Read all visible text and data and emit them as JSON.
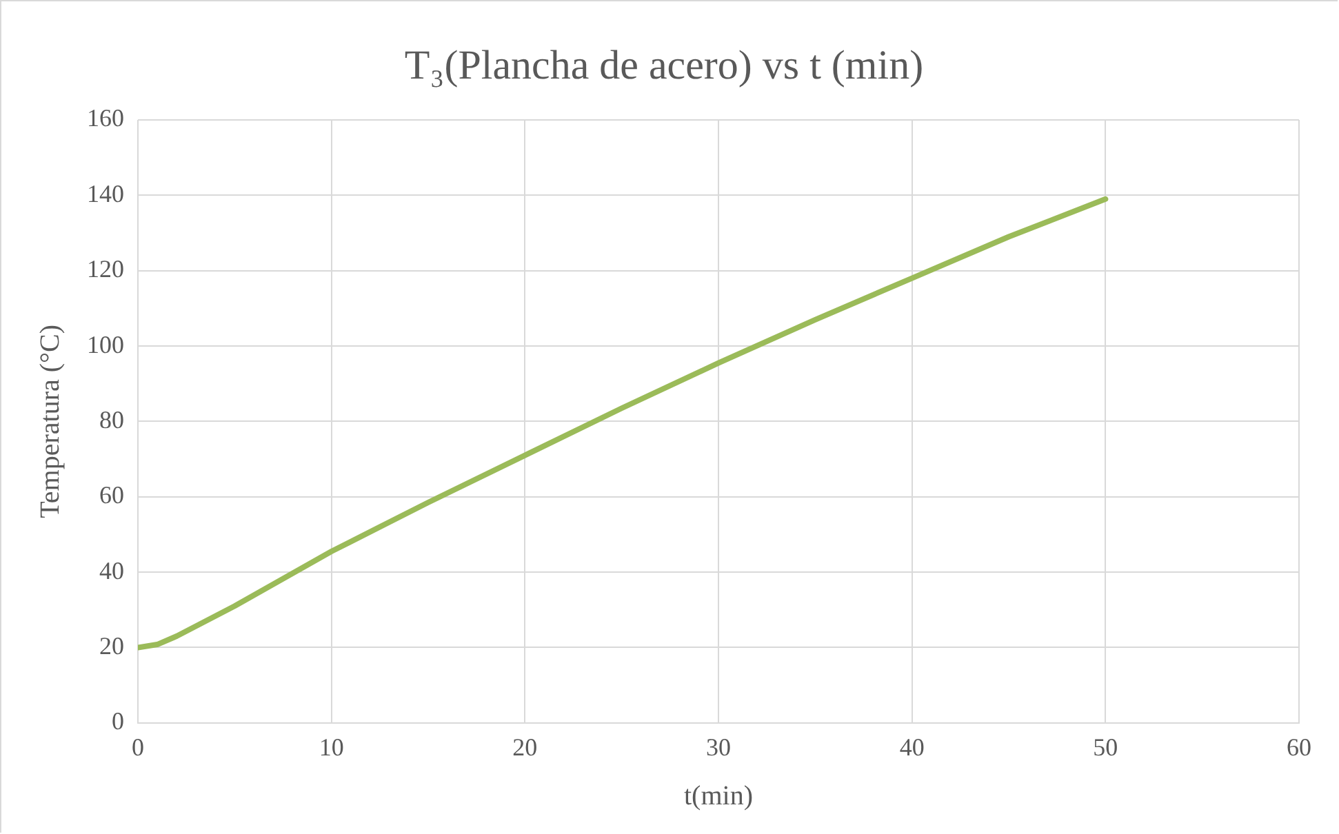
{
  "chart_data": {
    "type": "line",
    "title": "T₃(Plancha de acero) vs t (min)",
    "xlabel": "t(min)",
    "ylabel": "Temperatura (°C)",
    "x": [
      0,
      1,
      2,
      5,
      10,
      15,
      20,
      25,
      30,
      35,
      40,
      45,
      50
    ],
    "series": [
      {
        "color": "#9bbb59",
        "values": [
          20,
          20.8,
          23,
          31,
          45.5,
          58.5,
          71,
          83.5,
          95.5,
          107,
          118,
          129,
          139
        ]
      }
    ],
    "xlim": [
      0,
      60
    ],
    "xticks": [
      0,
      10,
      20,
      30,
      40,
      50,
      60
    ],
    "ylim": [
      0,
      160
    ],
    "yticks": [
      0,
      20,
      40,
      60,
      80,
      100,
      120,
      140,
      160
    ],
    "grid": true,
    "legend": false,
    "marker": "none",
    "line_style": "solid"
  }
}
